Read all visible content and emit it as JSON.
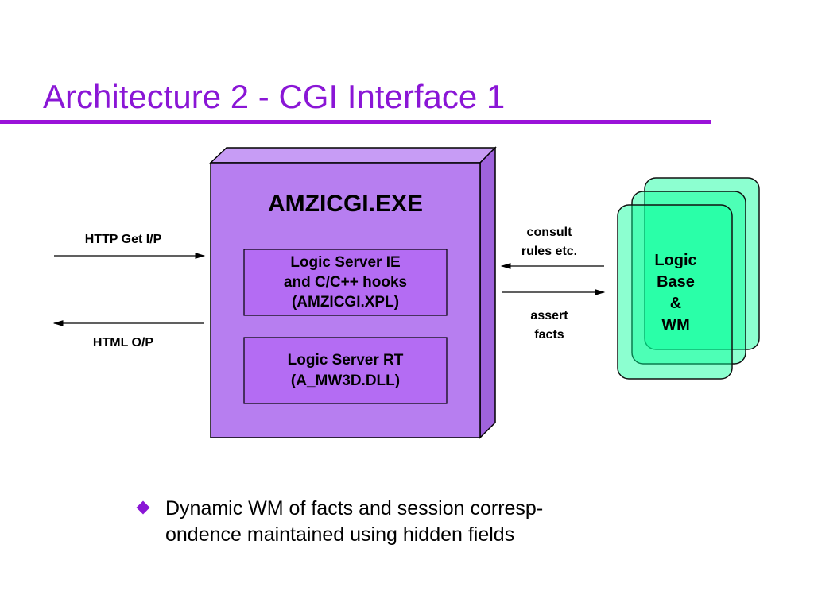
{
  "title": "Architecture 2 - CGI Interface 1",
  "colors": {
    "title": "#8a16d6",
    "box": "#b77ef0",
    "inner_box": "#b46cf3",
    "logic_base": "#00ff99"
  },
  "main_box": {
    "label": "AMZICGI.EXE",
    "components": [
      {
        "lines": [
          "Logic Server IE",
          "and C/C++ hooks",
          "(AMZICGI.XPL)"
        ]
      },
      {
        "lines": [
          "Logic Server RT",
          "(A_MW3D.DLL)"
        ]
      }
    ]
  },
  "arrows": {
    "http_in": "HTTP Get I/P",
    "html_out": "HTML O/P",
    "consult": [
      "consult",
      "rules etc."
    ],
    "assert": [
      "assert",
      "facts"
    ]
  },
  "logic_base": {
    "lines": [
      "Logic",
      "Base",
      "&",
      "WM"
    ]
  },
  "bullets": [
    {
      "icon": "diamond-bullet-icon",
      "lines": [
        "Dynamic WM of facts and session corresp-",
        "ondence maintained using hidden fields"
      ]
    }
  ]
}
